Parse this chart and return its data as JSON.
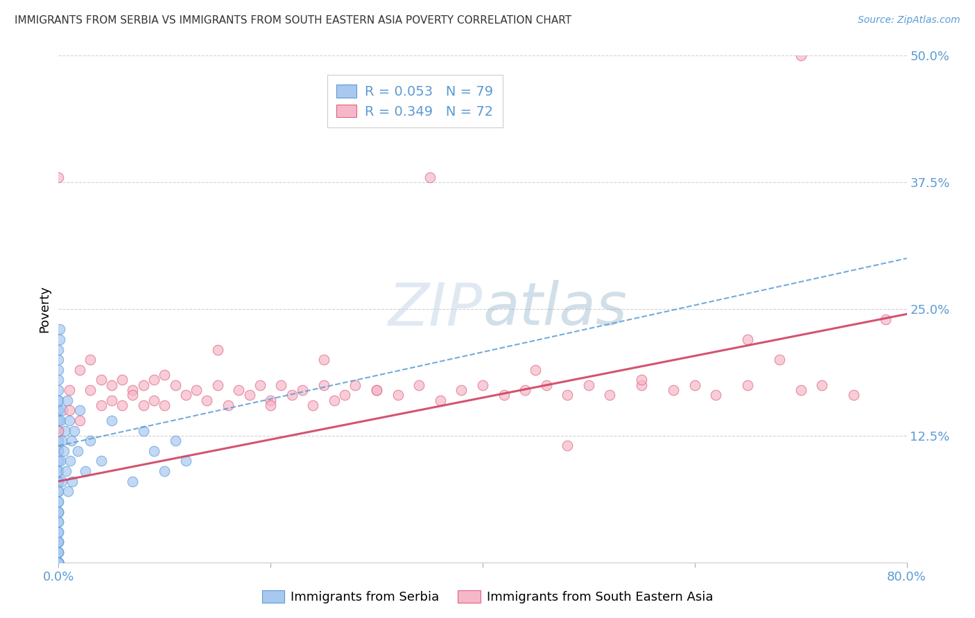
{
  "title": "IMMIGRANTS FROM SERBIA VS IMMIGRANTS FROM SOUTH EASTERN ASIA POVERTY CORRELATION CHART",
  "source": "Source: ZipAtlas.com",
  "ylabel": "Poverty",
  "xlim": [
    0.0,
    0.8
  ],
  "ylim": [
    0.0,
    0.5
  ],
  "serbia_color": "#a8c8f0",
  "serbia_edge_color": "#5b9bd5",
  "sea_color": "#f5b8c8",
  "sea_edge_color": "#e06080",
  "serbia_line_color": "#5b9bd5",
  "sea_line_color": "#d04060",
  "serbia_R": 0.053,
  "serbia_N": 79,
  "sea_R": 0.349,
  "sea_N": 72,
  "tick_color": "#5b9bd5",
  "background_color": "#ffffff",
  "grid_color": "#cccccc",
  "serbia_x": [
    0.0,
    0.0,
    0.0,
    0.0,
    0.0,
    0.0,
    0.0,
    0.0,
    0.0,
    0.0,
    0.0,
    0.0,
    0.0,
    0.0,
    0.0,
    0.0,
    0.0,
    0.0,
    0.0,
    0.0,
    0.0,
    0.0,
    0.0,
    0.0,
    0.0,
    0.0,
    0.0,
    0.0,
    0.0,
    0.0,
    0.0,
    0.0,
    0.0,
    0.0,
    0.0,
    0.0,
    0.0,
    0.0,
    0.0,
    0.0,
    0.0,
    0.0,
    0.0,
    0.0,
    0.0,
    0.0,
    0.0,
    0.0,
    0.0,
    0.0,
    0.001,
    0.001,
    0.002,
    0.002,
    0.003,
    0.003,
    0.004,
    0.005,
    0.006,
    0.007,
    0.008,
    0.009,
    0.01,
    0.011,
    0.012,
    0.013,
    0.015,
    0.018,
    0.02,
    0.025,
    0.03,
    0.04,
    0.05,
    0.07,
    0.08,
    0.09,
    0.1,
    0.11,
    0.12
  ],
  "serbia_y": [
    0.0,
    0.0,
    0.0,
    0.0,
    0.0,
    0.0,
    0.0,
    0.0,
    0.0,
    0.0,
    0.01,
    0.01,
    0.01,
    0.02,
    0.02,
    0.02,
    0.03,
    0.03,
    0.04,
    0.04,
    0.05,
    0.05,
    0.05,
    0.06,
    0.06,
    0.07,
    0.07,
    0.08,
    0.08,
    0.09,
    0.09,
    0.1,
    0.1,
    0.11,
    0.11,
    0.12,
    0.12,
    0.13,
    0.13,
    0.14,
    0.14,
    0.15,
    0.15,
    0.16,
    0.16,
    0.17,
    0.18,
    0.19,
    0.2,
    0.21,
    0.22,
    0.23,
    0.1,
    0.14,
    0.08,
    0.12,
    0.15,
    0.11,
    0.13,
    0.09,
    0.16,
    0.07,
    0.14,
    0.1,
    0.12,
    0.08,
    0.13,
    0.11,
    0.15,
    0.09,
    0.12,
    0.1,
    0.14,
    0.08,
    0.13,
    0.11,
    0.09,
    0.12,
    0.1
  ],
  "sea_x": [
    0.0,
    0.0,
    0.01,
    0.01,
    0.02,
    0.02,
    0.03,
    0.03,
    0.04,
    0.04,
    0.05,
    0.05,
    0.06,
    0.06,
    0.07,
    0.07,
    0.08,
    0.08,
    0.09,
    0.09,
    0.1,
    0.1,
    0.11,
    0.12,
    0.13,
    0.14,
    0.15,
    0.16,
    0.17,
    0.18,
    0.19,
    0.2,
    0.21,
    0.22,
    0.23,
    0.24,
    0.25,
    0.26,
    0.27,
    0.28,
    0.3,
    0.32,
    0.34,
    0.36,
    0.38,
    0.4,
    0.42,
    0.44,
    0.46,
    0.48,
    0.5,
    0.52,
    0.55,
    0.58,
    0.6,
    0.62,
    0.65,
    0.68,
    0.7,
    0.72,
    0.75,
    0.78,
    0.35,
    0.25,
    0.15,
    0.45,
    0.55,
    0.65,
    0.2,
    0.3,
    0.48,
    0.7
  ],
  "sea_y": [
    0.38,
    0.13,
    0.17,
    0.15,
    0.19,
    0.14,
    0.2,
    0.17,
    0.18,
    0.155,
    0.175,
    0.16,
    0.18,
    0.155,
    0.17,
    0.165,
    0.175,
    0.155,
    0.18,
    0.16,
    0.185,
    0.155,
    0.175,
    0.165,
    0.17,
    0.16,
    0.175,
    0.155,
    0.17,
    0.165,
    0.175,
    0.16,
    0.175,
    0.165,
    0.17,
    0.155,
    0.175,
    0.16,
    0.165,
    0.175,
    0.17,
    0.165,
    0.175,
    0.16,
    0.17,
    0.175,
    0.165,
    0.17,
    0.175,
    0.165,
    0.175,
    0.165,
    0.175,
    0.17,
    0.175,
    0.165,
    0.175,
    0.2,
    0.17,
    0.175,
    0.165,
    0.24,
    0.38,
    0.2,
    0.21,
    0.19,
    0.18,
    0.22,
    0.155,
    0.17,
    0.115,
    0.5
  ],
  "serbia_trend_x0": 0.0,
  "serbia_trend_y0": 0.115,
  "serbia_trend_x1": 0.8,
  "serbia_trend_y1": 0.3,
  "sea_trend_x0": 0.0,
  "sea_trend_y0": 0.08,
  "sea_trend_x1": 0.8,
  "sea_trend_y1": 0.245
}
